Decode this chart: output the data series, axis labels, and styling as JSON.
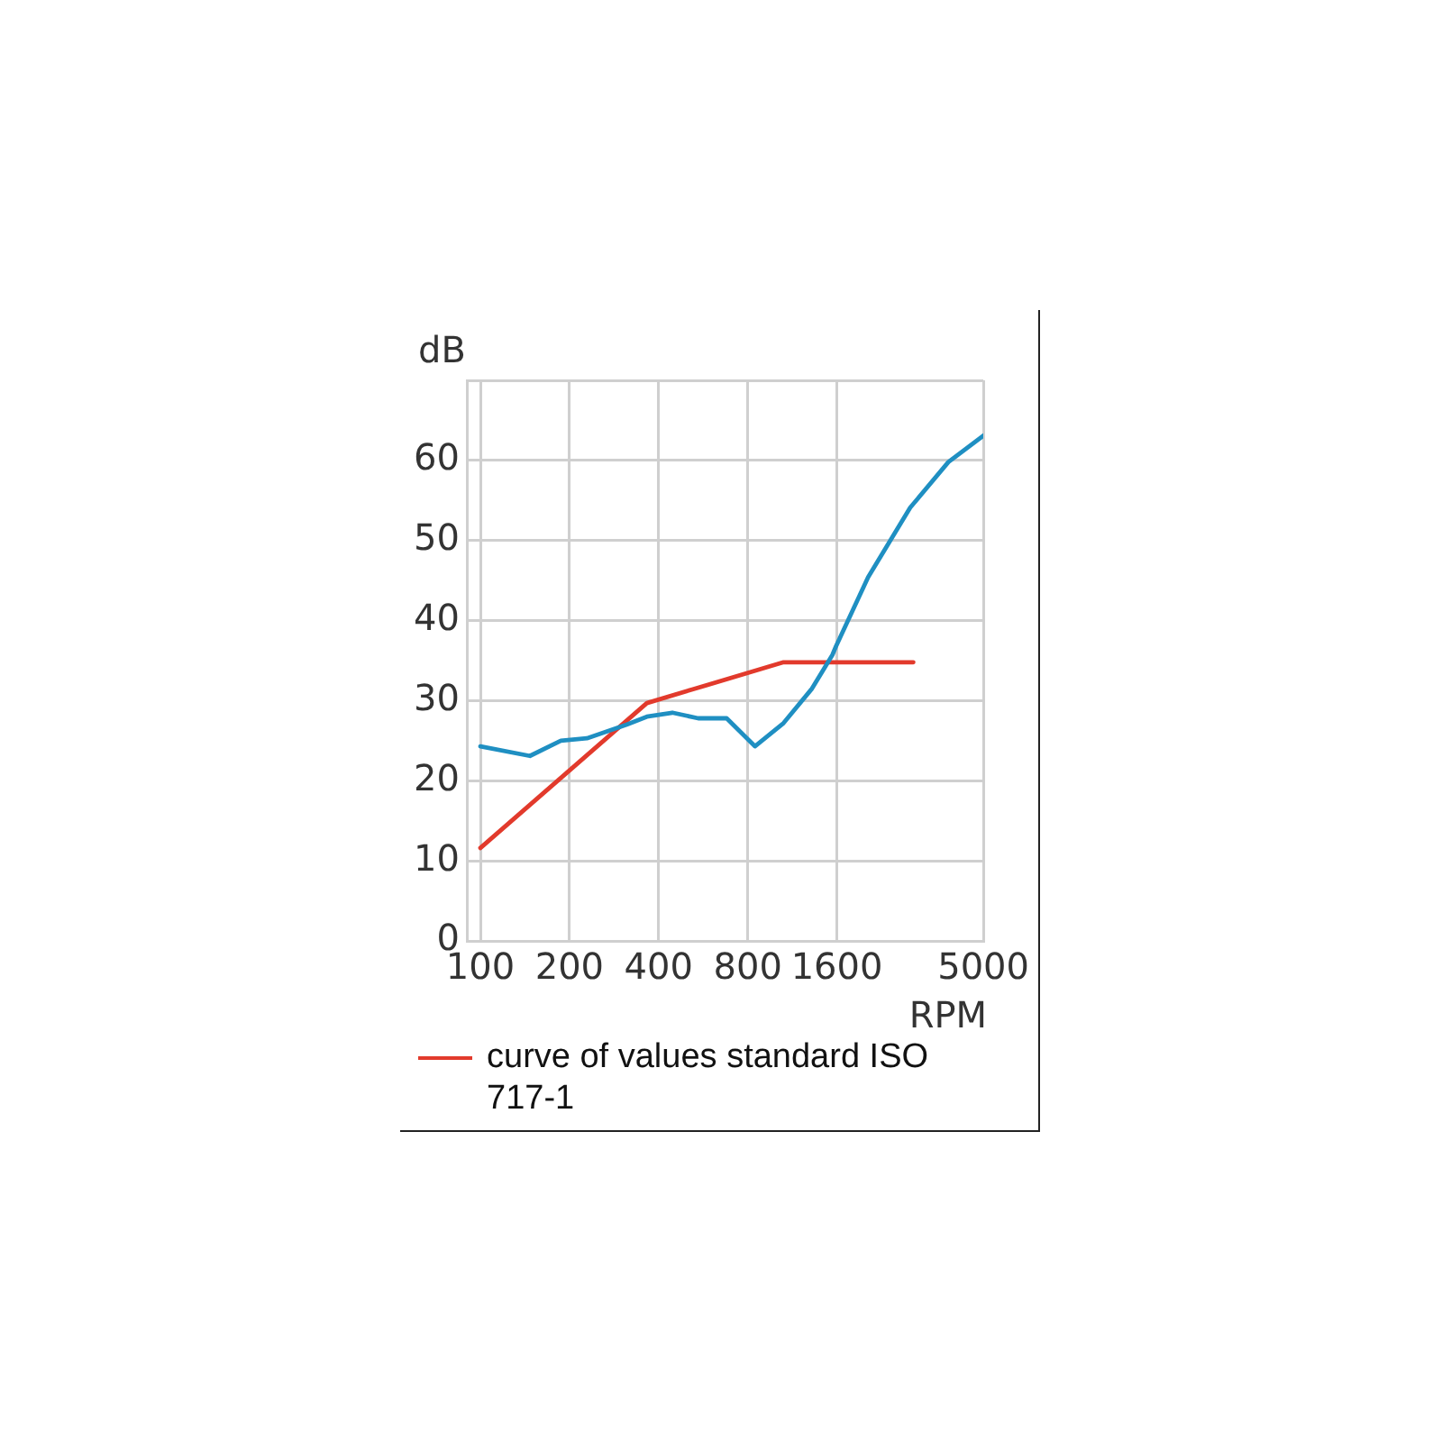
{
  "chart_data": {
    "type": "line",
    "xlabel": "RPM",
    "ylabel": "dB",
    "log": "x",
    "xlim": [
      90,
      5000
    ],
    "xticks": [
      100,
      200,
      400,
      800,
      1600,
      5000
    ],
    "ylim": [
      0,
      70
    ],
    "yticks": [
      0,
      10,
      20,
      30,
      40,
      50,
      {
        "value": 60,
        "label": "60"
      },
      {
        "value": 70,
        "label": null
      }
    ],
    "grid": true,
    "legend": "bottom left",
    "marker": "none",
    "line_style": "solid",
    "series": [
      {
        "color": "#1f8fc2",
        "x": [
          100,
          147,
          187,
          229,
          312,
          365,
          445,
          544,
          679,
          846,
          1057,
          1318,
          1545,
          1590,
          2040,
          2830,
          3810,
          5000
        ],
        "values": [
          24.3,
          23.1,
          25.0,
          25.3,
          27.0,
          28.0,
          28.5,
          27.8,
          27.8,
          24.3,
          27.2,
          31.5,
          35.7,
          36.8,
          45.4,
          54.1,
          59.8,
          63.1
        ]
      },
      {
        "name": "curve of values standard ISO 717-1",
        "color": "#e23a2c",
        "x": [
          100,
          365,
          1057,
          2900
        ],
        "values": [
          11.6,
          29.7,
          34.8,
          34.8
        ]
      }
    ]
  }
}
